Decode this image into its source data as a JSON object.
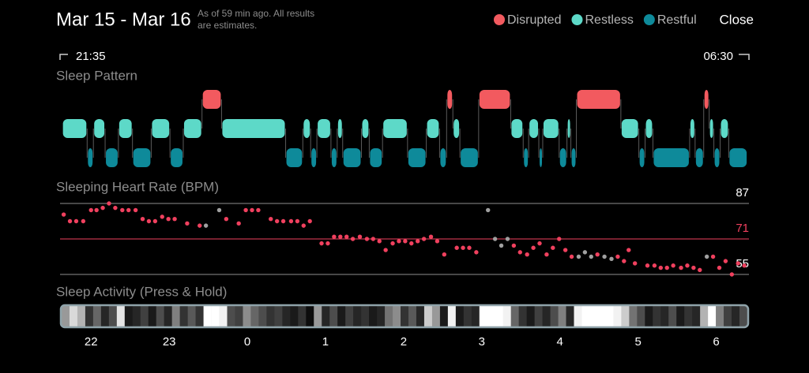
{
  "header": {
    "title": "Mar 15 - Mar 16",
    "note": [
      "As of 59 min ago. All results",
      "are estimates."
    ],
    "close": "Close",
    "start_time": "21:35",
    "end_time": "06:30"
  },
  "chart_data": [
    {
      "type": "timeline",
      "title": "Sleep Pattern",
      "xlim": [
        21.583,
        30.5
      ],
      "series": [
        {
          "name": "Disrupted",
          "color": "#f25a5f",
          "segments": [
            [
              23.42,
              23.67
            ],
            [
              26.55,
              26.63
            ],
            [
              26.96,
              27.37
            ],
            [
              28.21,
              28.78
            ],
            [
              29.84,
              29.91
            ]
          ]
        },
        {
          "name": "Restless",
          "color": "#5dd9c8",
          "segments": [
            [
              21.63,
              21.95
            ],
            [
              22.03,
              22.18
            ],
            [
              22.35,
              22.53
            ],
            [
              22.77,
              23.01
            ],
            [
              23.18,
              23.42
            ],
            [
              23.67,
              24.49
            ],
            [
              24.71,
              24.81
            ],
            [
              24.89,
              25.07
            ],
            [
              25.15,
              25.22
            ],
            [
              25.46,
              25.56
            ],
            [
              25.73,
              26.05
            ],
            [
              26.29,
              26.46
            ],
            [
              26.63,
              26.72
            ],
            [
              27.37,
              27.53
            ],
            [
              27.6,
              27.73
            ],
            [
              27.78,
              27.99
            ],
            [
              28.09,
              28.14
            ],
            [
              28.78,
              29.01
            ],
            [
              29.09,
              29.19
            ],
            [
              29.66,
              29.73
            ],
            [
              29.91,
              29.97
            ],
            [
              30.05,
              30.16
            ]
          ]
        },
        {
          "name": "Restful",
          "color": "#0e8a9a",
          "segments": [
            [
              21.95,
              22.03
            ],
            [
              22.18,
              22.35
            ],
            [
              22.53,
              22.77
            ],
            [
              23.01,
              23.18
            ],
            [
              24.49,
              24.71
            ],
            [
              24.81,
              24.89
            ],
            [
              25.07,
              25.15
            ],
            [
              25.22,
              25.46
            ],
            [
              25.56,
              25.73
            ],
            [
              26.05,
              26.29
            ],
            [
              26.46,
              26.55
            ],
            [
              26.72,
              26.96
            ],
            [
              27.53,
              27.6
            ],
            [
              27.73,
              27.78
            ],
            [
              27.99,
              28.09
            ],
            [
              28.14,
              28.21
            ],
            [
              29.01,
              29.09
            ],
            [
              29.19,
              29.66
            ],
            [
              29.73,
              29.84
            ],
            [
              29.97,
              30.05
            ],
            [
              30.16,
              30.4
            ]
          ]
        }
      ]
    },
    {
      "type": "scatter",
      "title": "Sleeping Heart Rate (BPM)",
      "xlim": [
        21.583,
        30.5
      ],
      "ylim": [
        55,
        87
      ],
      "yticks": [
        55,
        71,
        87
      ],
      "tick_colors": [
        "#8e8e8e",
        "#f0405e",
        "#8e8e8e"
      ],
      "label_colors": [
        "#ffffff",
        "#f0405e",
        "#ffffff"
      ],
      "series": [
        {
          "color": "#f0405e",
          "x": [
            21.65,
            21.73,
            21.81,
            21.9,
            22.0,
            22.07,
            22.15,
            22.23,
            22.31,
            22.4,
            22.48,
            22.57,
            22.66,
            22.74,
            22.82,
            22.91,
            22.99,
            23.07,
            23.23,
            23.39,
            23.73,
            23.89,
            23.98,
            24.06,
            24.14,
            24.3,
            24.38,
            24.46,
            24.56,
            24.64,
            24.72,
            24.8,
            24.95,
            25.03,
            25.11,
            25.19,
            25.27,
            25.35,
            25.44,
            25.53,
            25.61,
            25.69,
            25.77,
            25.86,
            25.94,
            26.02,
            26.1,
            26.18,
            26.26,
            26.35,
            26.43,
            26.52,
            26.68,
            26.76,
            26.84,
            26.93,
            27.41,
            27.49,
            27.58,
            27.66,
            27.74,
            27.83,
            27.91,
            27.99,
            28.07,
            28.15,
            28.48,
            28.74,
            28.82,
            28.88,
            28.96,
            29.12,
            29.21,
            29.29,
            29.37,
            29.45,
            29.55,
            29.63,
            29.71,
            29.79,
            29.96,
            30.04,
            30.12,
            30.2,
            30.28,
            30.36
          ],
          "values": [
            82,
            79,
            79,
            79,
            84,
            84,
            85,
            87,
            85,
            84,
            84,
            84,
            80,
            79,
            79,
            81,
            80,
            80,
            78,
            77,
            80,
            78,
            84,
            84,
            84,
            80,
            79,
            79,
            79,
            79,
            77,
            79,
            69,
            69,
            72,
            72,
            72,
            71,
            72,
            71,
            71,
            70,
            66,
            69,
            70,
            70,
            69,
            70,
            71,
            72,
            70,
            64,
            67,
            67,
            67,
            65,
            68,
            65,
            64,
            67,
            69,
            64,
            67,
            71,
            66,
            63,
            64,
            63,
            61,
            66,
            60,
            59,
            59,
            58,
            58,
            59,
            58,
            59,
            58,
            57,
            63,
            58,
            61,
            55,
            60,
            59
          ]
        },
        {
          "color": "#a0a0a0",
          "x": [
            23.47,
            23.64,
            27.08,
            27.17,
            27.25,
            27.33,
            28.24,
            28.32,
            28.4,
            28.57,
            28.66,
            29.88
          ],
          "values": [
            77,
            84,
            84,
            71,
            68,
            71,
            63,
            65,
            63,
            63,
            62,
            63
          ]
        }
      ]
    },
    {
      "type": "heatstrip",
      "title": "Sleep Activity (Press & Hold)",
      "xlim": [
        21.583,
        30.5
      ],
      "xticks": [
        22,
        23,
        {
          "value": 24,
          "label": "0"
        },
        {
          "value": 25,
          "label": "1"
        },
        {
          "value": 26,
          "label": "2"
        },
        {
          "value": 27,
          "label": "3"
        },
        {
          "value": 28,
          "label": "4"
        },
        {
          "value": 29,
          "label": "5"
        },
        {
          "value": 30,
          "label": "6"
        }
      ],
      "values": [
        60,
        85,
        70,
        20,
        40,
        15,
        30,
        90,
        10,
        15,
        25,
        10,
        30,
        15,
        50,
        20,
        35,
        20,
        100,
        100,
        95,
        30,
        25,
        55,
        40,
        30,
        20,
        25,
        15,
        10,
        20,
        5,
        60,
        15,
        30,
        10,
        25,
        15,
        20,
        10,
        15,
        45,
        55,
        20,
        35,
        15,
        80,
        60,
        10,
        95,
        10,
        20,
        15,
        100,
        100,
        100,
        95,
        40,
        20,
        10,
        25,
        15,
        30,
        50,
        15,
        95,
        100,
        100,
        100,
        100,
        95,
        80,
        45,
        30,
        10,
        20,
        15,
        30,
        10,
        20,
        15,
        70,
        100,
        50,
        25,
        15,
        30
      ]
    }
  ]
}
